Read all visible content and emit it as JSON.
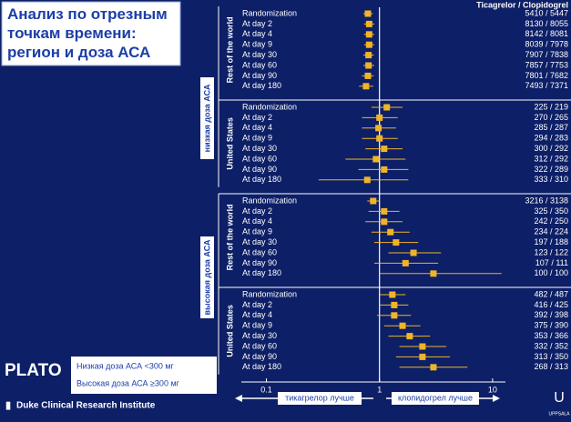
{
  "chart_data": {
    "type": "forest",
    "title": "Анализ по отрезным точкам времени: регион и доза АСА",
    "column_header": "Ticagrelor / Clopidogrel",
    "color": "#f0b429",
    "xscale": "log",
    "xlim": [
      0.06,
      13
    ],
    "xticks": [
      0.1,
      1,
      10
    ],
    "left_label": "тикагрелор лучше",
    "right_label": "клопидогрел лучше",
    "legend": [
      "Низкая доза АСА <300 мг",
      "Высокая доза АСА ≥300 мг"
    ],
    "logo": "PLATO",
    "institution": "Duke Clinical Research Institute",
    "university": "UPPSALA",
    "sections": [
      {
        "name": "низкая доза АСА",
        "groups": [
          {
            "name": "Rest of the world",
            "labels": [
              "Randomization",
              "At day 2",
              "At day 4",
              "At day 9",
              "At day 30",
              "At day 60",
              "At day 90",
              "At day 180"
            ],
            "values": [
              0.79,
              0.81,
              0.81,
              0.81,
              0.8,
              0.8,
              0.79,
              0.76
            ],
            "ci_low": [
              0.72,
              0.73,
              0.73,
              0.73,
              0.72,
              0.72,
              0.7,
              0.66
            ],
            "ci_high": [
              0.87,
              0.9,
              0.9,
              0.9,
              0.89,
              0.9,
              0.89,
              0.88
            ],
            "counts": [
              "5410 / 5447",
              "8130 / 8055",
              "8142 / 8081",
              "8039 / 7978",
              "7907 / 7838",
              "7857 / 7753",
              "7801 / 7682",
              "7493 / 7371"
            ]
          },
          {
            "name": "United States",
            "labels": [
              "Randomization",
              "At day 2",
              "At day 4",
              "At day 9",
              "At day 30",
              "At day 60",
              "At day 90",
              "At day 180"
            ],
            "values": [
              1.16,
              1.0,
              0.98,
              1.0,
              1.1,
              0.93,
              1.1,
              0.78
            ],
            "ci_low": [
              0.85,
              0.7,
              0.7,
              0.7,
              0.75,
              0.5,
              0.65,
              0.29
            ],
            "ci_high": [
              1.6,
              1.45,
              1.4,
              1.45,
              1.6,
              1.7,
              1.8,
              1.8
            ],
            "counts": [
              "225 / 219",
              "270 / 265",
              "285 / 287",
              "294 / 283",
              "300 / 292",
              "312 / 292",
              "322 / 289",
              "333 / 310"
            ]
          }
        ]
      },
      {
        "name": "высокая доза АСА",
        "groups": [
          {
            "name": "Rest of the world",
            "labels": [
              "Randomization",
              "At day 2",
              "At day 4",
              "At day 9",
              "At day 30",
              "At day 60",
              "At day 90",
              "At day 180"
            ],
            "values": [
              0.88,
              1.1,
              1.1,
              1.25,
              1.4,
              2.0,
              1.7,
              3.0
            ],
            "ci_low": [
              0.78,
              0.8,
              0.75,
              0.85,
              0.9,
              1.2,
              0.9,
              1.0
            ],
            "ci_high": [
              1.0,
              1.5,
              1.6,
              1.85,
              2.2,
              3.5,
              3.3,
              12
            ],
            "counts": [
              "3216 / 3138",
              "325 / 350",
              "242 / 250",
              "234 / 224",
              "197 / 188",
              "123 / 122",
              "107 / 111",
              "100 / 100"
            ]
          },
          {
            "name": "United States",
            "labels": [
              "Randomization",
              "At day 2",
              "At day 4",
              "At day 9",
              "At day 30",
              "At day 60",
              "At day 90",
              "At day 180"
            ],
            "values": [
              1.3,
              1.35,
              1.35,
              1.6,
              1.85,
              2.4,
              2.4,
              3.0
            ],
            "ci_low": [
              1.0,
              1.0,
              0.95,
              1.1,
              1.2,
              1.5,
              1.4,
              1.5
            ],
            "ci_high": [
              1.7,
              1.8,
              1.9,
              2.3,
              2.8,
              3.9,
              4.2,
              6.0
            ],
            "counts": [
              "482 / 487",
              "416 / 425",
              "392 / 398",
              "375 / 390",
              "353 / 366",
              "332 / 352",
              "313 / 350",
              "268 / 313"
            ]
          }
        ]
      }
    ]
  }
}
